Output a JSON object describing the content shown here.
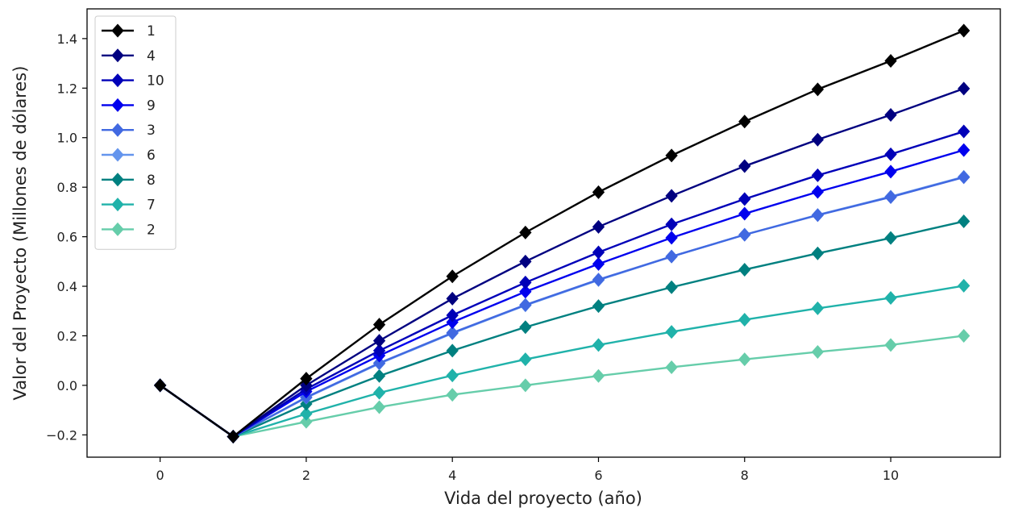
{
  "chart_data": {
    "type": "line",
    "xlabel": "Vida del proyecto (año)",
    "ylabel": "Valor del Proyecto (Millones de dólares)",
    "xlim": [
      -1.0,
      11.5
    ],
    "ylim": [
      -0.29,
      1.52
    ],
    "xticks": [
      0,
      2,
      4,
      6,
      8,
      10
    ],
    "yticks": [
      -0.2,
      0.0,
      0.2,
      0.4,
      0.6,
      0.8,
      1.0,
      1.2,
      1.4
    ],
    "ytick_labels": [
      "−0.2",
      "0.0",
      "0.2",
      "0.4",
      "0.6",
      "0.8",
      "1.0",
      "1.2",
      "1.4"
    ],
    "x": [
      0,
      1,
      2,
      3,
      4,
      5,
      6,
      7,
      8,
      9,
      10,
      11
    ],
    "grid": false,
    "legend_position": "top-left",
    "marker": "diamond",
    "series": [
      {
        "name": "1",
        "color": "#000000",
        "values": [
          0,
          -0.207,
          0.027,
          0.245,
          0.44,
          0.617,
          0.78,
          0.928,
          1.065,
          1.195,
          1.31,
          1.432
        ]
      },
      {
        "name": "4",
        "color": "#000080",
        "values": [
          0,
          -0.207,
          0.0,
          0.18,
          0.35,
          0.5,
          0.64,
          0.765,
          0.885,
          0.992,
          1.092,
          1.198
        ]
      },
      {
        "name": "10",
        "color": "#0000b8",
        "values": [
          0,
          -0.207,
          -0.015,
          0.14,
          0.283,
          0.415,
          0.537,
          0.65,
          0.752,
          0.848,
          0.933,
          1.025
        ]
      },
      {
        "name": "9",
        "color": "#0000ee",
        "values": [
          0,
          -0.207,
          -0.025,
          0.12,
          0.255,
          0.378,
          0.49,
          0.596,
          0.693,
          0.781,
          0.863,
          0.95
        ]
      },
      {
        "name": "3",
        "color": "#4169e1",
        "values": [
          0,
          -0.207,
          -0.048,
          0.09,
          0.212,
          0.325,
          0.427,
          0.52,
          0.608,
          0.687,
          0.76,
          0.84
        ]
      },
      {
        "name": "6",
        "color": "#6495ed",
        "values": [
          0,
          -0.207,
          -0.05,
          0.088,
          0.21,
          0.323,
          0.425,
          0.52,
          0.608,
          0.688,
          0.762,
          0.842
        ]
      },
      {
        "name": "8",
        "color": "#008080",
        "values": [
          0,
          -0.207,
          -0.075,
          0.038,
          0.14,
          0.235,
          0.32,
          0.396,
          0.467,
          0.533,
          0.595,
          0.662
        ]
      },
      {
        "name": "7",
        "color": "#20b2aa",
        "values": [
          0,
          -0.207,
          -0.115,
          -0.03,
          0.04,
          0.105,
          0.163,
          0.216,
          0.265,
          0.311,
          0.353,
          0.402
        ]
      },
      {
        "name": "2",
        "color": "#66cdaa",
        "values": [
          0,
          -0.207,
          -0.147,
          -0.088,
          -0.038,
          0.0,
          0.038,
          0.073,
          0.105,
          0.135,
          0.163,
          0.2
        ]
      }
    ]
  }
}
